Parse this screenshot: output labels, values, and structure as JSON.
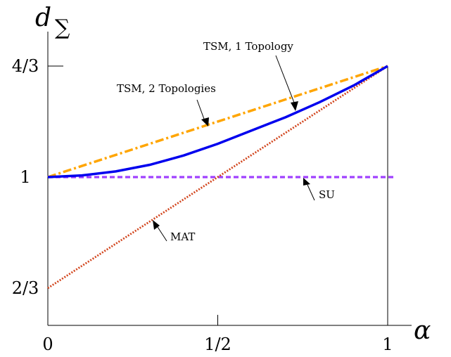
{
  "chart_data": {
    "type": "line",
    "xlabel": "α",
    "ylabel": "d",
    "ylabel_sub": "∑",
    "xlim": [
      0,
      1
    ],
    "ylim": [
      0.5,
      1.4
    ],
    "x_ticks": [
      {
        "value": 0,
        "label": "0"
      },
      {
        "value": 0.5,
        "label": "1/2"
      },
      {
        "value": 1,
        "label": "1"
      }
    ],
    "y_ticks": [
      {
        "value": 0.6667,
        "label": "2/3"
      },
      {
        "value": 1,
        "label": "1"
      },
      {
        "value": 1.3333,
        "label": "4/3"
      }
    ],
    "series": [
      {
        "name": "TSM, 2 Topologies",
        "color": "#ffa500",
        "style": "dashdot",
        "x": [
          0,
          1
        ],
        "y": [
          1,
          1.3333
        ]
      },
      {
        "name": "TSM, 1 Topology",
        "color": "#0000ee",
        "style": "solid",
        "x": [
          0,
          0.1,
          0.2,
          0.3,
          0.4,
          0.5,
          0.6,
          0.7,
          0.8,
          0.9,
          1.0
        ],
        "y": [
          1,
          1.005,
          1.017,
          1.037,
          1.065,
          1.1,
          1.14,
          1.18,
          1.225,
          1.275,
          1.3333
        ]
      },
      {
        "name": "MAT",
        "color": "#d2461e",
        "style": "dotted",
        "x": [
          0,
          1
        ],
        "y": [
          0.6667,
          1.3333
        ]
      },
      {
        "name": "SU",
        "color": "#a040ff",
        "style": "dashed",
        "x": [
          0,
          1.02
        ],
        "y": [
          1,
          1
        ]
      }
    ],
    "annotations": [
      {
        "text": "TSM, 1 Topology",
        "series": "TSM, 1 Topology"
      },
      {
        "text": "TSM, 2 Topologies",
        "series": "TSM, 2 Topologies"
      },
      {
        "text": "SU",
        "series": "SU"
      },
      {
        "text": "MAT",
        "series": "MAT"
      }
    ]
  }
}
